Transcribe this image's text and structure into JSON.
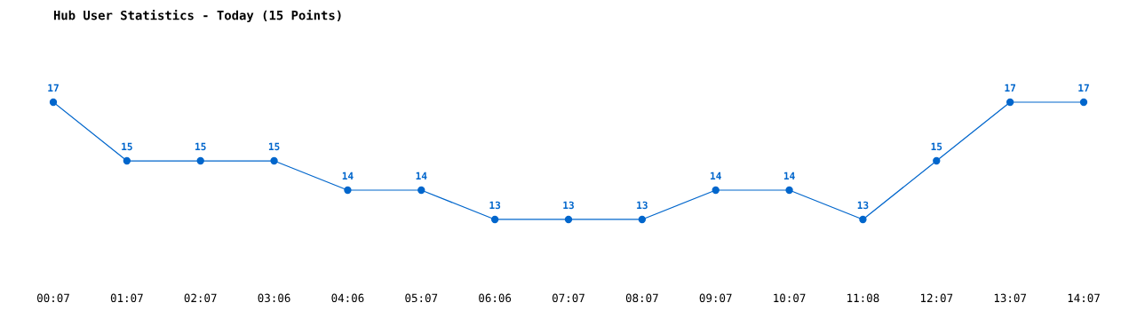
{
  "chart_data": {
    "type": "line",
    "title": "Hub User Statistics - Today (15 Points)",
    "categories": [
      "00:07",
      "01:07",
      "02:07",
      "03:06",
      "04:06",
      "05:07",
      "06:06",
      "07:07",
      "08:07",
      "09:07",
      "10:07",
      "11:08",
      "12:07",
      "13:07",
      "14:07"
    ],
    "series": [
      {
        "color": "#0066cc",
        "values": [
          17,
          15,
          15,
          15,
          14,
          14,
          13,
          13,
          13,
          14,
          14,
          13,
          15,
          17,
          17
        ]
      }
    ],
    "data_labels": true,
    "marker": "circle",
    "grid": false,
    "legend": false,
    "tick_labels": "x"
  }
}
